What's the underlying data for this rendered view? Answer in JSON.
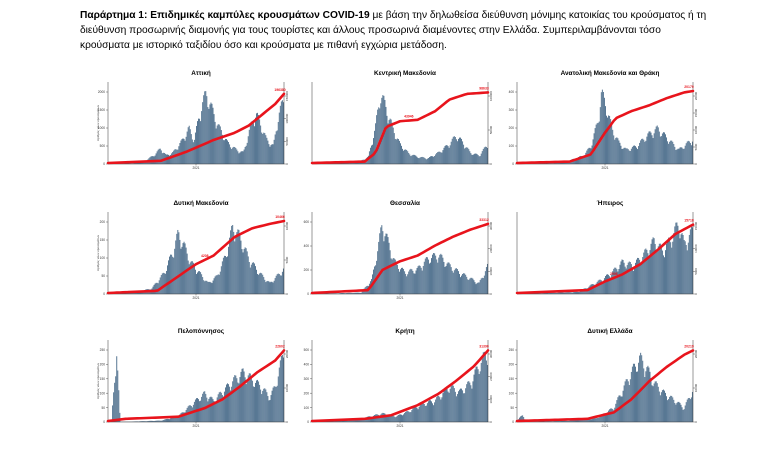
{
  "caption": {
    "lead": "Παράρτημα 1:  Επιδημικές καμπύλες κρουσμάτων COVID-19",
    "text": "με βάση την δηλωθείσα διεύθυνση μόνιμης κατοικίας του κρούσματος ή τη διεύθυνση προσωρινής διαμονής για τους τουρίστες και άλλους προσωρινά διαμένοντες στην Ελλάδα. Συμπεριλαμβάνονται τόσο κρούσματα με ιστορικό ταξιδίου όσο και κρούσματα με πιθανή εγχώρια μετάδοση."
  },
  "colors": {
    "bars": "#4d6e8c",
    "cumulative": "#e8141c",
    "axis": "#333333"
  },
  "chart_data": [
    {
      "type": "bar",
      "title": "Αττική",
      "x_tick": "2021",
      "ylabel": "Αριθμός νέων κρουσμάτων",
      "left_ticks": [
        "0",
        "500",
        "1000",
        "1500",
        "2000"
      ],
      "left_max": 2250,
      "right_ticks": [
        "0",
        "50000",
        "100000",
        "150000"
      ],
      "right_max": 200000,
      "label_mid": "",
      "label_end": "196380",
      "profile": [
        [
          0,
          0
        ],
        [
          0.14,
          0.01
        ],
        [
          0.2,
          0.03
        ],
        [
          0.26,
          0.12
        ],
        [
          0.3,
          0.22
        ],
        [
          0.33,
          0.12
        ],
        [
          0.37,
          0.16
        ],
        [
          0.42,
          0.32
        ],
        [
          0.46,
          0.5
        ],
        [
          0.49,
          0.34
        ],
        [
          0.53,
          0.8
        ],
        [
          0.56,
          1.0
        ],
        [
          0.59,
          0.78
        ],
        [
          0.63,
          0.52
        ],
        [
          0.68,
          0.3
        ],
        [
          0.73,
          0.2
        ],
        [
          0.77,
          0.16
        ],
        [
          0.81,
          0.52
        ],
        [
          0.84,
          0.72
        ],
        [
          0.87,
          0.55
        ],
        [
          0.9,
          0.35
        ],
        [
          0.94,
          0.25
        ],
        [
          0.97,
          0.7
        ],
        [
          1,
          0.9
        ]
      ],
      "cumulative": [
        [
          0,
          0
        ],
        [
          0.3,
          0.03
        ],
        [
          0.45,
          0.16
        ],
        [
          0.6,
          0.32
        ],
        [
          0.72,
          0.42
        ],
        [
          0.8,
          0.52
        ],
        [
          0.88,
          0.68
        ],
        [
          0.95,
          0.82
        ],
        [
          1,
          0.96
        ]
      ]
    },
    {
      "type": "bar",
      "title": "Κεντρική Μακεδονία",
      "x_tick": "",
      "ylabel": "",
      "left_ticks": [],
      "left_max": 1,
      "right_ticks": [
        "0",
        "50000",
        "100000"
      ],
      "right_max": 120000,
      "label_mid": "43946",
      "label_end": "98633",
      "profile": [
        [
          0,
          0
        ],
        [
          0.26,
          0.02
        ],
        [
          0.32,
          0.1
        ],
        [
          0.36,
          0.5
        ],
        [
          0.39,
          1.0
        ],
        [
          0.42,
          0.8
        ],
        [
          0.46,
          0.5
        ],
        [
          0.5,
          0.28
        ],
        [
          0.55,
          0.15
        ],
        [
          0.6,
          0.1
        ],
        [
          0.66,
          0.08
        ],
        [
          0.72,
          0.16
        ],
        [
          0.78,
          0.28
        ],
        [
          0.82,
          0.4
        ],
        [
          0.86,
          0.3
        ],
        [
          0.9,
          0.16
        ],
        [
          0.95,
          0.12
        ],
        [
          1,
          0.28
        ]
      ],
      "cumulative": [
        [
          0,
          0
        ],
        [
          0.3,
          0.02
        ],
        [
          0.36,
          0.14
        ],
        [
          0.42,
          0.5
        ],
        [
          0.5,
          0.58
        ],
        [
          0.6,
          0.6
        ],
        [
          0.7,
          0.72
        ],
        [
          0.78,
          0.88
        ],
        [
          0.88,
          0.96
        ],
        [
          1,
          0.98
        ]
      ]
    },
    {
      "type": "bar",
      "title": "Ανατολική Μακεδονία και Θράκη",
      "x_tick": "2021",
      "ylabel": "",
      "left_ticks": [
        "0",
        "100",
        "200",
        "300",
        "400"
      ],
      "left_max": 450,
      "right_ticks": [
        "0",
        "5000",
        "10000",
        "15000",
        "20000"
      ],
      "right_max": 24000,
      "label_mid": "",
      "label_end": "20170",
      "profile": [
        [
          0,
          0
        ],
        [
          0.2,
          0.01
        ],
        [
          0.3,
          0.05
        ],
        [
          0.38,
          0.12
        ],
        [
          0.42,
          0.25
        ],
        [
          0.46,
          0.6
        ],
        [
          0.48,
          1.0
        ],
        [
          0.51,
          0.8
        ],
        [
          0.54,
          0.5
        ],
        [
          0.58,
          0.3
        ],
        [
          0.62,
          0.2
        ],
        [
          0.68,
          0.25
        ],
        [
          0.74,
          0.4
        ],
        [
          0.8,
          0.5
        ],
        [
          0.86,
          0.35
        ],
        [
          0.92,
          0.2
        ],
        [
          1,
          0.35
        ]
      ],
      "cumulative": [
        [
          0,
          0
        ],
        [
          0.3,
          0.02
        ],
        [
          0.42,
          0.12
        ],
        [
          0.5,
          0.42
        ],
        [
          0.56,
          0.62
        ],
        [
          0.65,
          0.72
        ],
        [
          0.75,
          0.8
        ],
        [
          0.85,
          0.9
        ],
        [
          0.95,
          0.98
        ],
        [
          1,
          1.0
        ]
      ]
    },
    {
      "type": "bar",
      "title": "Δυτική Μακεδονία",
      "x_tick": "2021",
      "ylabel": "Αριθμός νέων κρουσμάτων",
      "left_ticks": [
        "0",
        "50",
        "100",
        "150",
        "200"
      ],
      "left_max": 220,
      "right_ticks": [
        "0",
        "5000",
        "10000"
      ],
      "right_max": 12000,
      "label_mid": "4208",
      "label_end": "10466",
      "profile": [
        [
          0,
          0
        ],
        [
          0.15,
          0.02
        ],
        [
          0.25,
          0.08
        ],
        [
          0.32,
          0.3
        ],
        [
          0.37,
          0.6
        ],
        [
          0.4,
          0.85
        ],
        [
          0.43,
          0.7
        ],
        [
          0.47,
          0.45
        ],
        [
          0.52,
          0.3
        ],
        [
          0.57,
          0.15
        ],
        [
          0.62,
          0.25
        ],
        [
          0.67,
          0.55
        ],
        [
          0.71,
          0.95
        ],
        [
          0.75,
          0.8
        ],
        [
          0.8,
          0.5
        ],
        [
          0.86,
          0.3
        ],
        [
          0.92,
          0.15
        ],
        [
          1,
          0.35
        ]
      ],
      "cumulative": [
        [
          0,
          0
        ],
        [
          0.28,
          0.03
        ],
        [
          0.38,
          0.2
        ],
        [
          0.5,
          0.4
        ],
        [
          0.6,
          0.52
        ],
        [
          0.72,
          0.78
        ],
        [
          0.82,
          0.9
        ],
        [
          0.92,
          0.96
        ],
        [
          1,
          1.0
        ]
      ]
    },
    {
      "type": "bar",
      "title": "Θεσσαλία",
      "x_tick": "2021",
      "ylabel": "",
      "left_ticks": [
        "0",
        "200",
        "400",
        "600"
      ],
      "left_max": 700,
      "right_ticks": [
        "0",
        "10000",
        "20000",
        "30000"
      ],
      "right_max": 40000,
      "label_mid": "",
      "label_end": "33312",
      "profile": [
        [
          0,
          0
        ],
        [
          0.28,
          0.02
        ],
        [
          0.34,
          0.2
        ],
        [
          0.38,
          0.7
        ],
        [
          0.4,
          1.0
        ],
        [
          0.43,
          0.75
        ],
        [
          0.47,
          0.45
        ],
        [
          0.53,
          0.3
        ],
        [
          0.6,
          0.35
        ],
        [
          0.66,
          0.5
        ],
        [
          0.72,
          0.55
        ],
        [
          0.78,
          0.4
        ],
        [
          0.84,
          0.3
        ],
        [
          0.9,
          0.22
        ],
        [
          0.95,
          0.15
        ],
        [
          1,
          0.4
        ]
      ],
      "cumulative": [
        [
          0,
          0
        ],
        [
          0.32,
          0.04
        ],
        [
          0.4,
          0.32
        ],
        [
          0.5,
          0.44
        ],
        [
          0.6,
          0.52
        ],
        [
          0.7,
          0.66
        ],
        [
          0.8,
          0.78
        ],
        [
          0.9,
          0.88
        ],
        [
          1,
          0.96
        ]
      ]
    },
    {
      "type": "bar",
      "title": "Ήπειρος",
      "x_tick": "",
      "ylabel": "",
      "left_ticks": [],
      "left_max": 1,
      "right_ticks": [
        "0",
        "5000",
        "10000",
        "15000"
      ],
      "right_max": 17000,
      "label_mid": "2908",
      "label_end": "15718",
      "profile": [
        [
          0,
          0
        ],
        [
          0.35,
          0.03
        ],
        [
          0.42,
          0.12
        ],
        [
          0.48,
          0.2
        ],
        [
          0.54,
          0.3
        ],
        [
          0.6,
          0.45
        ],
        [
          0.66,
          0.4
        ],
        [
          0.72,
          0.55
        ],
        [
          0.78,
          0.75
        ],
        [
          0.83,
          0.6
        ],
        [
          0.88,
          0.8
        ],
        [
          0.92,
          1.0
        ],
        [
          0.95,
          0.7
        ],
        [
          1,
          0.9
        ]
      ],
      "cumulative": [
        [
          0,
          0
        ],
        [
          0.4,
          0.04
        ],
        [
          0.5,
          0.16
        ],
        [
          0.6,
          0.26
        ],
        [
          0.7,
          0.4
        ],
        [
          0.8,
          0.6
        ],
        [
          0.9,
          0.82
        ],
        [
          1,
          0.95
        ]
      ]
    },
    {
      "type": "bar",
      "title": "Πελοπόννησος",
      "x_tick": "2021",
      "ylabel": "Αριθμός νέων κρουσμάτων",
      "left_ticks": [
        "0",
        "50",
        "100",
        "150",
        "200",
        "250"
      ],
      "left_max": 270,
      "right_ticks": [
        "0",
        "10000",
        "20000"
      ],
      "right_max": 26000,
      "label_mid": "",
      "label_end": "22602",
      "profile": [
        [
          0,
          0
        ],
        [
          0.02,
          0.0
        ],
        [
          0.05,
          1.0
        ],
        [
          0.07,
          0.0
        ],
        [
          0.3,
          0.02
        ],
        [
          0.4,
          0.08
        ],
        [
          0.5,
          0.3
        ],
        [
          0.55,
          0.4
        ],
        [
          0.6,
          0.3
        ],
        [
          0.66,
          0.45
        ],
        [
          0.72,
          0.6
        ],
        [
          0.77,
          0.7
        ],
        [
          0.82,
          0.6
        ],
        [
          0.87,
          0.5
        ],
        [
          0.92,
          0.35
        ],
        [
          0.95,
          0.5
        ],
        [
          1,
          1.0
        ]
      ],
      "cumulative": [
        [
          0,
          0
        ],
        [
          0.1,
          0.03
        ],
        [
          0.4,
          0.06
        ],
        [
          0.55,
          0.18
        ],
        [
          0.65,
          0.3
        ],
        [
          0.75,
          0.48
        ],
        [
          0.85,
          0.68
        ],
        [
          0.95,
          0.84
        ],
        [
          1,
          0.98
        ]
      ]
    },
    {
      "type": "bar",
      "title": "Κρήτη",
      "x_tick": "2021",
      "ylabel": "",
      "left_ticks": [
        "0",
        "100",
        "200",
        "300",
        "400",
        "500"
      ],
      "left_max": 520,
      "right_ticks": [
        "0",
        "10000",
        "20000",
        "30000"
      ],
      "right_max": 32000,
      "label_mid": "",
      "label_end": "31390",
      "profile": [
        [
          0,
          0
        ],
        [
          0.2,
          0.02
        ],
        [
          0.3,
          0.06
        ],
        [
          0.4,
          0.12
        ],
        [
          0.48,
          0.08
        ],
        [
          0.55,
          0.15
        ],
        [
          0.62,
          0.25
        ],
        [
          0.7,
          0.3
        ],
        [
          0.78,
          0.5
        ],
        [
          0.84,
          0.42
        ],
        [
          0.9,
          0.55
        ],
        [
          0.95,
          0.8
        ],
        [
          1,
          1.0
        ]
      ],
      "cumulative": [
        [
          0,
          0
        ],
        [
          0.3,
          0.03
        ],
        [
          0.45,
          0.08
        ],
        [
          0.6,
          0.22
        ],
        [
          0.72,
          0.38
        ],
        [
          0.82,
          0.56
        ],
        [
          0.92,
          0.76
        ],
        [
          1,
          0.98
        ]
      ]
    },
    {
      "type": "bar",
      "title": "Δυτική Ελλάδα",
      "x_tick": "2021",
      "ylabel": "",
      "left_ticks": [
        "0",
        "50",
        "100",
        "150",
        "200",
        "250"
      ],
      "left_max": 280,
      "right_ticks": [
        "0",
        "10000",
        "20000"
      ],
      "right_max": 22000,
      "label_mid": "",
      "label_end": "20219",
      "profile": [
        [
          0,
          0
        ],
        [
          0.03,
          0.12
        ],
        [
          0.05,
          0.0
        ],
        [
          0.3,
          0.02
        ],
        [
          0.45,
          0.05
        ],
        [
          0.55,
          0.2
        ],
        [
          0.6,
          0.45
        ],
        [
          0.65,
          0.7
        ],
        [
          0.7,
          0.9
        ],
        [
          0.74,
          0.75
        ],
        [
          0.78,
          0.55
        ],
        [
          0.84,
          0.4
        ],
        [
          0.9,
          0.3
        ],
        [
          0.95,
          0.2
        ],
        [
          1,
          0.45
        ]
      ],
      "cumulative": [
        [
          0,
          0
        ],
        [
          0.4,
          0.03
        ],
        [
          0.55,
          0.12
        ],
        [
          0.65,
          0.3
        ],
        [
          0.75,
          0.55
        ],
        [
          0.85,
          0.75
        ],
        [
          0.95,
          0.92
        ],
        [
          1,
          0.98
        ]
      ]
    }
  ]
}
